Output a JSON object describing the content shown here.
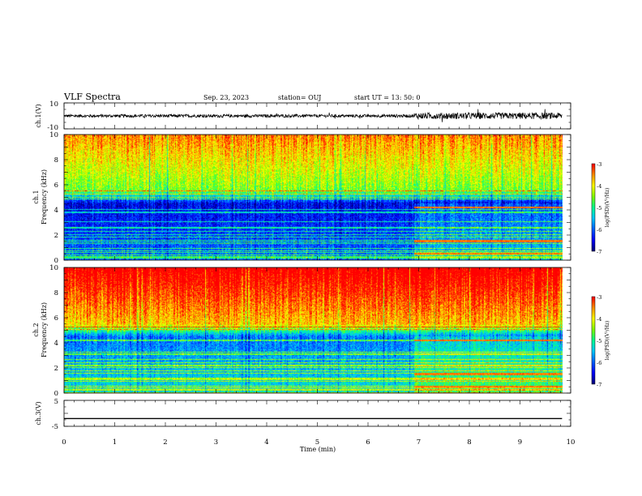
{
  "header": {
    "title": "VLF Spectra",
    "date": "Sep. 23, 2023",
    "station": "station= OUJ",
    "start": "start  UT =  13: 50: 0"
  },
  "chart_data": [
    {
      "type": "line",
      "panel": "waveform-ch1",
      "ylabel": "ch.1(V)",
      "ylim": [
        -10,
        10
      ],
      "yticks": [
        "10",
        "-10"
      ],
      "xlim": [
        0,
        10
      ],
      "description_values": {
        "baseline": 0,
        "noise_amplitude_before_7min": 1.2,
        "noise_amplitude_after_7min": 2.5
      }
    },
    {
      "type": "heatmap",
      "panel": "spectrogram-ch1",
      "ylabel": "ch.1\nFrequency (kHz)",
      "ylim": [
        0,
        10
      ],
      "yticks": [
        "0",
        "2",
        "4",
        "6",
        "8",
        "10"
      ],
      "xlim": [
        0,
        10
      ],
      "colorbar": {
        "label": "log(PSD)(V²/Hz)",
        "range": [
          -7,
          -3
        ],
        "ticks": [
          "-3",
          "-4",
          "-5",
          "-6",
          "-7"
        ]
      }
    },
    {
      "type": "heatmap",
      "panel": "spectrogram-ch2",
      "ylabel": "ch.2\nFrequency (kHz)",
      "ylim": [
        0,
        10
      ],
      "yticks": [
        "0",
        "2",
        "4",
        "6",
        "8",
        "10"
      ],
      "xlim": [
        0,
        10
      ],
      "colorbar": {
        "label": "log(PSD)(V²/Hz)",
        "range": [
          -7,
          -3
        ],
        "ticks": [
          "-3",
          "-4",
          "-5",
          "-6",
          "-7"
        ]
      }
    },
    {
      "type": "line",
      "panel": "waveform-ch3",
      "ylabel": "ch.3(V)",
      "ylim": [
        -5,
        5
      ],
      "yticks": [
        "5",
        "0",
        "-5"
      ],
      "xlim": [
        0,
        10
      ],
      "values": {
        "constant": -2
      }
    }
  ],
  "xaxis": {
    "label": "Time (min)",
    "ticks": [
      "0",
      "1",
      "2",
      "3",
      "4",
      "5",
      "6",
      "7",
      "8",
      "9",
      "10"
    ],
    "data_end_min": 9.83
  },
  "colors": {
    "cmap": [
      "#00007a",
      "#0000ff",
      "#0060ff",
      "#00c8ff",
      "#00ff90",
      "#80ff00",
      "#ffff00",
      "#ff9000",
      "#ff0000",
      "#ffffff"
    ]
  }
}
